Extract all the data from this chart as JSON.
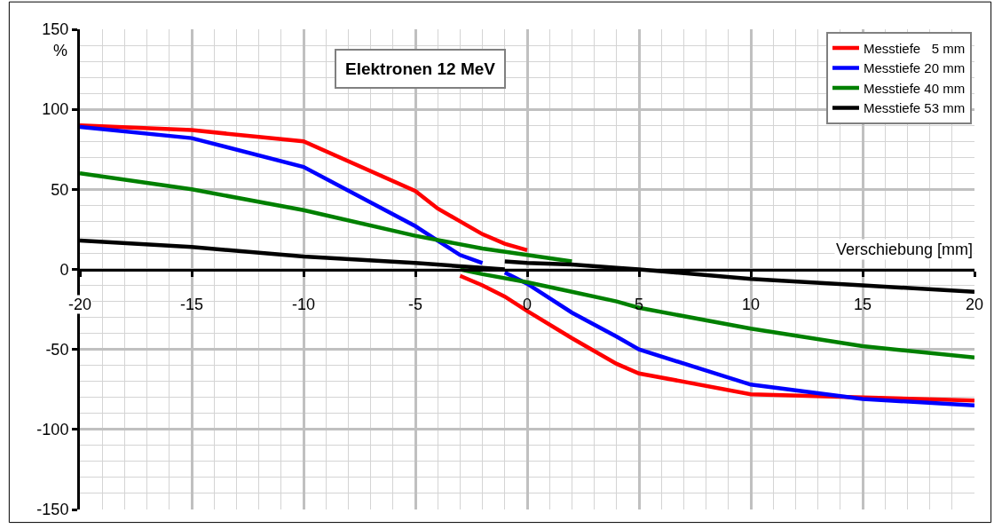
{
  "chart_data": {
    "type": "line",
    "title": "Elektronen 12 MeV",
    "xlabel": "Verschiebung [mm]",
    "ylabel": "%",
    "xlim": [
      -20,
      20
    ],
    "xticks": [
      -20,
      -15,
      -10,
      -5,
      0,
      5,
      10,
      15,
      20
    ],
    "ylim": [
      -150,
      150
    ],
    "yticks": [
      -150,
      -100,
      -50,
      0,
      50,
      100,
      150
    ],
    "grid": true,
    "legend": "top right",
    "marker": "none",
    "line_style": "solid",
    "series": [
      {
        "name": "Messtiefe   5 mm",
        "color": "#ff0000",
        "x": [
          -20,
          -15,
          -10,
          -5,
          -4,
          -3,
          -2,
          -1,
          0
        ],
        "values": [
          90,
          87,
          80,
          49,
          38,
          30,
          22,
          16,
          12
        ]
      },
      {
        "color": "#ff0000",
        "x": [
          -3,
          -2,
          -1,
          0,
          2,
          4,
          5,
          10,
          15,
          20
        ],
        "values": [
          -4,
          -10,
          -17,
          -26,
          -43,
          -59,
          -65,
          -78,
          -80,
          -82
        ]
      },
      {
        "name": "Messtiefe 20 mm",
        "color": "#0000ff",
        "x": [
          -20,
          -15,
          -10,
          -5,
          -4,
          -3,
          -2
        ],
        "values": [
          89,
          82,
          64,
          27,
          18,
          9,
          4
        ]
      },
      {
        "color": "#0000ff",
        "x": [
          -1,
          0,
          2,
          4,
          5,
          10,
          15,
          20
        ],
        "values": [
          -2,
          -9,
          -27,
          -42,
          -50,
          -72,
          -81,
          -85
        ]
      },
      {
        "name": "Messtiefe 40 mm",
        "color": "#008000",
        "x": [
          -20,
          -15,
          -10,
          -5,
          -2,
          0,
          2
        ],
        "values": [
          60,
          50,
          37,
          21,
          13,
          9,
          5
        ]
      },
      {
        "color": "#008000",
        "x": [
          -3,
          -2,
          0,
          2,
          4,
          5,
          10,
          15,
          20
        ],
        "values": [
          0,
          -3,
          -8,
          -14,
          -20,
          -24,
          -37,
          -48,
          -55
        ]
      },
      {
        "name": "Messtiefe 53 mm",
        "color": "#000000",
        "x": [
          -20,
          -15,
          -10,
          -5,
          -1
        ],
        "values": [
          18,
          14,
          8,
          4,
          0
        ]
      },
      {
        "color": "#000000",
        "x": [
          -1,
          0,
          2,
          4,
          5,
          10,
          15,
          20
        ],
        "values": [
          5,
          4,
          3,
          1,
          0,
          -6,
          -10,
          -14
        ]
      }
    ]
  }
}
